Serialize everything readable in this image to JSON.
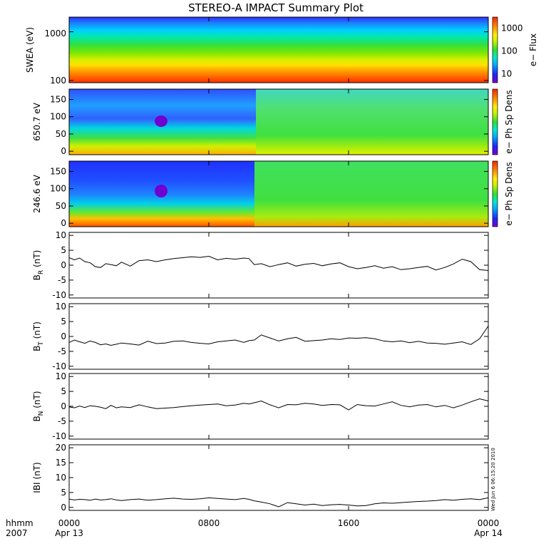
{
  "chart_data": {
    "type": "line",
    "title": "STEREO-A IMPACT Summary Plot",
    "timestamp": "Wed Jun  6 06:15:20 2010",
    "time_axis": {
      "unit_label": "hhmm",
      "year_label": "2007",
      "range_hours": [
        0,
        24
      ],
      "ticks": [
        {
          "hour": 0,
          "time": "0000",
          "date": "Apr 13"
        },
        {
          "hour": 8,
          "time": "0800",
          "date": ""
        },
        {
          "hour": 16,
          "time": "1600",
          "date": ""
        },
        {
          "hour": 24,
          "time": "0000",
          "date": "Apr 14"
        }
      ]
    },
    "spectrograms": [
      {
        "id": "swea",
        "ylabel": "SWEA (eV)",
        "yscale": "log",
        "ylim": [
          90,
          2000
        ],
        "yticks": [
          "1000",
          "100"
        ],
        "yticks_values": [
          1000,
          100
        ],
        "colorbar_label": "e− Flux",
        "colorbar_ticks": [
          "1000",
          "100",
          "10"
        ],
        "colorbar_ticks_values": [
          1000,
          100,
          10
        ]
      },
      {
        "id": "pad650",
        "ylabel": "650.7 eV",
        "ylim": [
          -10,
          180
        ],
        "yticks": [
          "150",
          "100",
          "50",
          "0"
        ],
        "yticks_values": [
          150,
          100,
          50,
          0
        ],
        "colorbar_label": "e− Ph Sp Dens"
      },
      {
        "id": "pad246",
        "ylabel": "246.6 eV",
        "ylim": [
          -10,
          180
        ],
        "yticks": [
          "150",
          "100",
          "50",
          "0"
        ],
        "yticks_values": [
          150,
          100,
          50,
          0
        ],
        "colorbar_label": "e− Ph Sp Dens"
      }
    ],
    "series": [
      {
        "name": "B_R",
        "ylabel_main": "B",
        "ylabel_sub": "R",
        "ylabel_unit": "(nT)",
        "ylim": [
          -11,
          11
        ],
        "yticks": [
          10,
          5,
          0,
          -5,
          -10
        ],
        "x": [
          0,
          0.3,
          0.6,
          0.9,
          1.2,
          1.5,
          1.8,
          2.1,
          2.4,
          2.7,
          3,
          3.5,
          4,
          4.5,
          5,
          5.5,
          6,
          6.5,
          7,
          7.5,
          8,
          8.5,
          9,
          9.5,
          10,
          10.3,
          10.6,
          11,
          11.5,
          12,
          12.5,
          13,
          13.5,
          14,
          14.5,
          15,
          15.5,
          16,
          16.5,
          17,
          17.5,
          18,
          18.5,
          19,
          19.5,
          20,
          20.5,
          21,
          21.5,
          22,
          22.5,
          23,
          23.5,
          24
        ],
        "values": [
          2.5,
          1.8,
          2.4,
          1.2,
          0.8,
          -0.5,
          -0.8,
          0.5,
          0.2,
          -0.2,
          1,
          -0.3,
          1.5,
          1.8,
          1.2,
          1.8,
          2.2,
          2.5,
          2.8,
          2.6,
          3,
          1.8,
          2.3,
          2,
          2.4,
          2.2,
          0.2,
          0.5,
          -0.5,
          0.2,
          0.8,
          -0.3,
          0.3,
          0.6,
          -0.2,
          0.4,
          0.8,
          -0.5,
          -1.2,
          -0.8,
          -0.2,
          -1,
          -0.5,
          -1.5,
          -1.2,
          -0.8,
          -0.4,
          -1.6,
          -0.8,
          0.4,
          2,
          1.2,
          -1.5,
          -1.8
        ]
      },
      {
        "name": "B_T",
        "ylabel_main": "B",
        "ylabel_sub": "T",
        "ylabel_unit": "(nT)",
        "ylim": [
          -11,
          11
        ],
        "yticks": [
          10,
          5,
          0,
          -5,
          -10
        ],
        "x": [
          0,
          0.3,
          0.6,
          0.9,
          1.2,
          1.5,
          1.8,
          2.1,
          2.4,
          2.7,
          3,
          3.5,
          4,
          4.5,
          5,
          5.5,
          6,
          6.5,
          7,
          7.5,
          8,
          8.5,
          9,
          9.5,
          10,
          10.3,
          10.6,
          11,
          11.5,
          12,
          12.5,
          13,
          13.5,
          14,
          14.5,
          15,
          15.5,
          16,
          16.5,
          17,
          17.5,
          18,
          18.5,
          19,
          19.5,
          20,
          20.5,
          21,
          21.5,
          22,
          22.5,
          23,
          23.5,
          24
        ],
        "values": [
          -2,
          -1.2,
          -1.8,
          -2.3,
          -1.5,
          -2,
          -2.8,
          -2.5,
          -3,
          -2.6,
          -2.2,
          -2.5,
          -2.9,
          -1.6,
          -2.4,
          -2.2,
          -1.6,
          -1.5,
          -2,
          -2.3,
          -2.5,
          -1.8,
          -1.5,
          -1.2,
          -2,
          -1.4,
          -1.2,
          0.5,
          -0.5,
          -1.5,
          -0.8,
          -0.3,
          -1.6,
          -1.4,
          -1.2,
          -0.8,
          -1,
          -0.5,
          -0.6,
          -0.4,
          -0.8,
          -1.5,
          -1.8,
          -1.5,
          -2.1,
          -1.6,
          -2.2,
          -2.3,
          -2.6,
          -2.2,
          -1.8,
          -2.7,
          -0.8,
          3.5
        ]
      },
      {
        "name": "B_N",
        "ylabel_main": "B",
        "ylabel_sub": "N",
        "ylabel_unit": "(nT)",
        "ylim": [
          -11,
          11
        ],
        "yticks": [
          10,
          5,
          0,
          -5,
          -10
        ],
        "x": [
          0,
          0.3,
          0.6,
          0.9,
          1.2,
          1.5,
          1.8,
          2.1,
          2.4,
          2.7,
          3,
          3.5,
          4,
          4.5,
          5,
          5.5,
          6,
          6.5,
          7,
          7.5,
          8,
          8.5,
          9,
          9.5,
          10,
          10.3,
          10.6,
          11,
          11.5,
          12,
          12.5,
          13,
          13.5,
          14,
          14.5,
          15,
          15.5,
          16,
          16.5,
          17,
          17.5,
          18,
          18.5,
          19,
          19.5,
          20,
          20.5,
          21,
          21.5,
          22,
          22.5,
          23,
          23.5,
          24
        ],
        "values": [
          -0.2,
          -0.5,
          0.1,
          -0.4,
          0.2,
          0,
          -0.3,
          -0.8,
          0.3,
          -0.5,
          -0.2,
          -0.4,
          0.5,
          -0.2,
          -0.8,
          -0.6,
          -0.4,
          -0.1,
          0.2,
          0.4,
          0.6,
          0.8,
          0.2,
          0.4,
          1,
          0.8,
          1.2,
          1.8,
          0.5,
          -0.5,
          0.6,
          0.5,
          1,
          0.8,
          0.3,
          0.6,
          0.5,
          -1.2,
          0.6,
          0.2,
          0.1,
          0.8,
          1.5,
          0.3,
          -0.2,
          0.4,
          0.6,
          -0.2,
          0.3,
          -0.5,
          0.4,
          1.5,
          2.5,
          1.8
        ]
      },
      {
        "name": "|B|",
        "ylabel_main": "IBI",
        "ylabel_sub": "",
        "ylabel_unit": "(nT)",
        "ylim": [
          -1,
          21
        ],
        "yticks": [
          20,
          15,
          10,
          5,
          0
        ],
        "x": [
          0,
          0.3,
          0.6,
          0.9,
          1.2,
          1.5,
          1.8,
          2.1,
          2.4,
          2.7,
          3,
          3.5,
          4,
          4.5,
          5,
          5.5,
          6,
          6.5,
          7,
          7.5,
          8,
          8.5,
          9,
          9.5,
          10,
          10.3,
          10.6,
          11,
          11.5,
          12,
          12.5,
          13,
          13.5,
          14,
          14.5,
          15,
          15.5,
          16,
          16.5,
          17,
          17.5,
          18,
          18.5,
          19,
          19.5,
          20,
          20.5,
          21,
          21.5,
          22,
          22.5,
          23,
          23.5,
          24
        ],
        "values": [
          2.8,
          2.5,
          2.7,
          2.6,
          2.4,
          2.8,
          2.5,
          2.6,
          2.9,
          2.5,
          2.3,
          2.6,
          2.8,
          2.4,
          2.6,
          2.9,
          3.1,
          2.8,
          2.7,
          2.9,
          3.2,
          3,
          2.8,
          2.6,
          3,
          2.7,
          2.2,
          1.8,
          1.2,
          0.2,
          1.6,
          1.2,
          0.8,
          1.1,
          0.6,
          0.9,
          1,
          0.8,
          0.5,
          0.6,
          1.2,
          1.5,
          1.4,
          1.6,
          1.8,
          2,
          2.1,
          2.3,
          2.6,
          2.4,
          2.7,
          2.9,
          2.6,
          3.2
        ]
      }
    ]
  }
}
